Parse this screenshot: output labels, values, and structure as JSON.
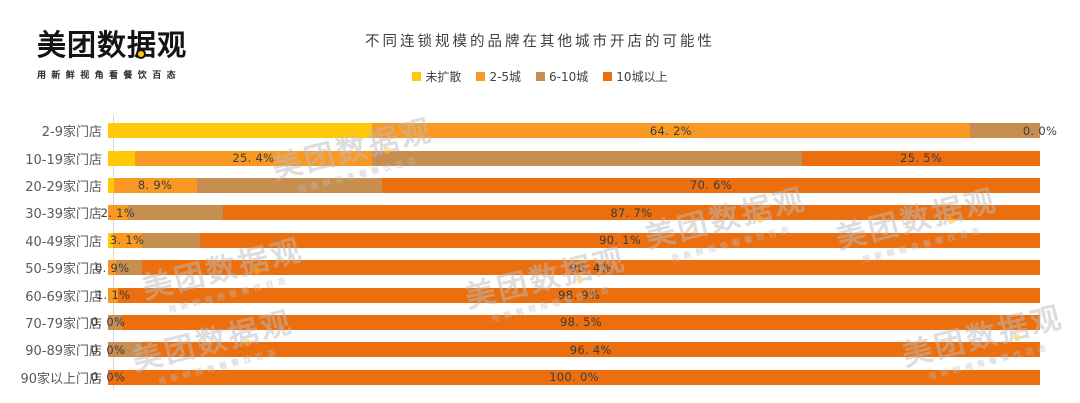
{
  "brand": {
    "logo_text": "美团数据观",
    "tagline": "用新鲜视角看餐饮百态",
    "accent_color": "#FFC908"
  },
  "watermark": {
    "text": "美团数据观",
    "tagline": "用新鲜视角看餐饮百态"
  },
  "chart_data": {
    "type": "bar",
    "orientation": "horizontal",
    "stacked": true,
    "title": "不同连锁规模的品牌在其他城市开店的可能性",
    "legend_position": "top",
    "xlim": [
      0,
      100
    ],
    "value_suffix": "%",
    "grid": false,
    "categories": [
      "2-9家门店",
      "10-19家门店",
      "20-29家门店",
      "30-39家门店",
      "40-49家门店",
      "50-59家门店",
      "60-69家门店",
      "70-79家门店",
      "90-89家门店",
      "90家以上门店"
    ],
    "series": [
      {
        "name": "未扩散",
        "color": "#FFC908",
        "show_labels": false,
        "values": [
          28.3,
          2.9,
          0.6,
          0.0,
          0.5,
          0.0,
          0.0,
          0.0,
          0.0,
          0.0
        ]
      },
      {
        "name": "2-5城",
        "color": "#F99822",
        "show_labels": true,
        "values": [
          64.2,
          25.4,
          8.9,
          2.1,
          3.1,
          0.9,
          1.1,
          0.0,
          0.0,
          0.0
        ]
      },
      {
        "name": "6-10城",
        "color": "#C68E4F",
        "show_labels": false,
        "values": [
          7.5,
          46.2,
          19.9,
          10.2,
          6.3,
          2.7,
          0.0,
          1.5,
          3.6,
          0.0
        ]
      },
      {
        "name": "10城以上",
        "color": "#EB6E0F",
        "show_labels": true,
        "values": [
          0.0,
          25.5,
          70.6,
          87.7,
          90.1,
          96.4,
          98.9,
          98.5,
          96.4,
          100.0
        ]
      }
    ]
  }
}
